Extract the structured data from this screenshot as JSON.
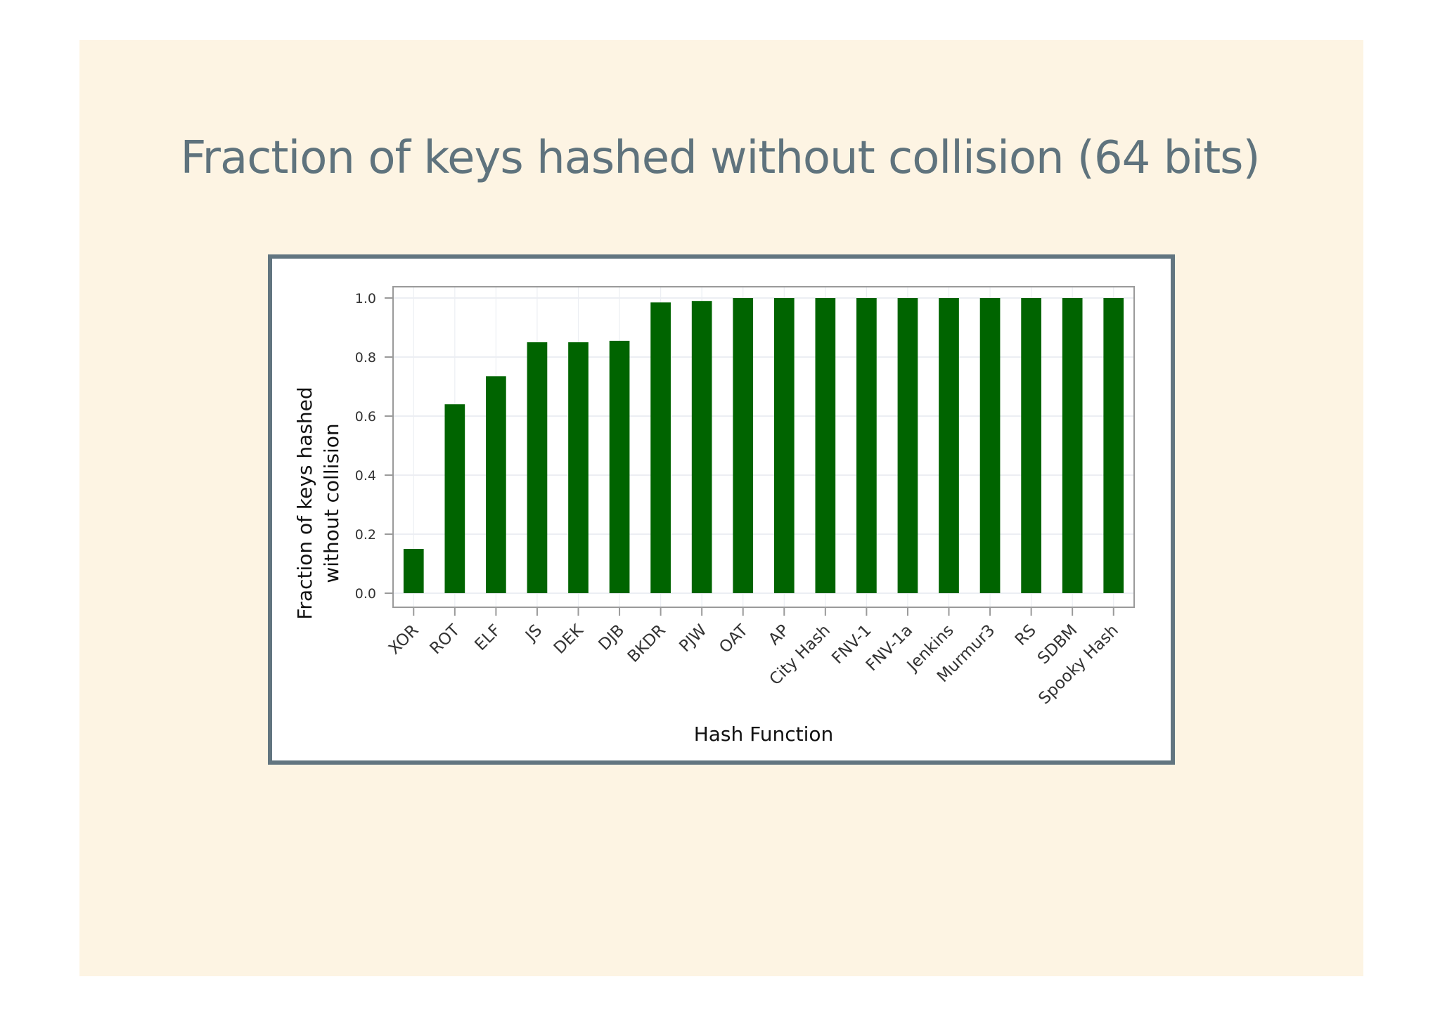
{
  "slide": {
    "title": "Fraction of keys hashed without collision (64 bits)"
  },
  "colors": {
    "slide_background": "#fdf4e3",
    "title_text": "#5f737d",
    "frame_border": "#627580",
    "bar_fill": "#006400"
  },
  "chart_data": {
    "type": "bar",
    "title": "",
    "xlabel": "Hash Function",
    "ylabel_lines": [
      "Fraction of keys hashed",
      "without collision"
    ],
    "ylim": [
      0.0,
      1.0
    ],
    "yticks": [
      0.0,
      0.2,
      0.4,
      0.6,
      0.8,
      1.0
    ],
    "ytick_labels": [
      "0.0",
      "0.2",
      "0.4",
      "0.6",
      "0.8",
      "1.0"
    ],
    "grid": true,
    "categories": [
      "XOR",
      "ROT",
      "ELF",
      "JS",
      "DEK",
      "DJB",
      "BKDR",
      "PJW",
      "OAT",
      "AP",
      "City Hash",
      "FNV-1",
      "FNV-1a",
      "Jenkins",
      "Murmur3",
      "RS",
      "SDBM",
      "Spooky Hash"
    ],
    "values": [
      0.15,
      0.64,
      0.735,
      0.85,
      0.85,
      0.855,
      0.985,
      0.99,
      1.0,
      1.0,
      1.0,
      1.0,
      1.0,
      1.0,
      1.0,
      1.0,
      1.0,
      1.0
    ]
  }
}
